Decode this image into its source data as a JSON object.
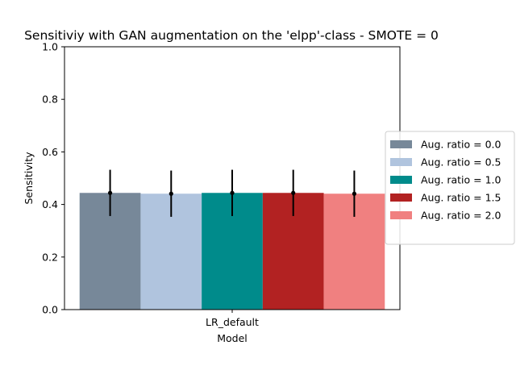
{
  "chart_data": {
    "type": "bar",
    "title": "Sensitiviy with GAN augmentation on the 'elpp'-class - SMOTE = 0",
    "xlabel": "Model",
    "ylabel": "Sensitivity",
    "categories": [
      "LR_default"
    ],
    "ylim": [
      0,
      1
    ],
    "yticks": [
      "0.0",
      "0.2",
      "0.4",
      "0.6",
      "0.8",
      "1.0"
    ],
    "grid": false,
    "legend_position": "center-right outside",
    "series": [
      {
        "name": "Aug. ratio = 0.0",
        "values": [
          0.444
        ],
        "error": [
          0.088
        ],
        "color": "#778899"
      },
      {
        "name": "Aug. ratio = 0.5",
        "values": [
          0.441
        ],
        "error": [
          0.088
        ],
        "color": "#B0C4DE"
      },
      {
        "name": "Aug. ratio = 1.0",
        "values": [
          0.444
        ],
        "error": [
          0.088
        ],
        "color": "#008B8B"
      },
      {
        "name": "Aug. ratio = 1.5",
        "values": [
          0.444
        ],
        "error": [
          0.088
        ],
        "color": "#B22222"
      },
      {
        "name": "Aug. ratio = 2.0",
        "values": [
          0.441
        ],
        "error": [
          0.088
        ],
        "color": "#F08080"
      }
    ]
  }
}
